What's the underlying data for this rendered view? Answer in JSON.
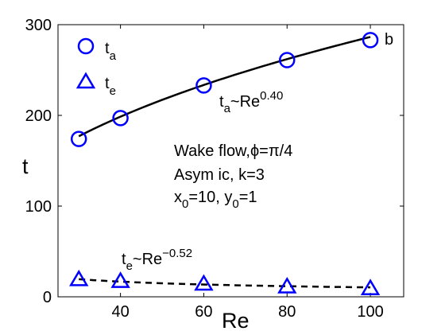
{
  "chart_data": {
    "type": "line",
    "xlabel": "Re",
    "ylabel": "t",
    "xlim": [
      25,
      108
    ],
    "ylim": [
      0,
      300
    ],
    "x_ticks": [
      40,
      60,
      80,
      100
    ],
    "y_ticks": [
      0,
      100,
      200,
      300
    ],
    "grid": false,
    "legend_position": "top-left",
    "panel_label": "b",
    "series": [
      {
        "name": "t_a",
        "legend": {
          "base": "t",
          "sub": "a"
        },
        "marker": "circle",
        "color": "#0000ff",
        "x": [
          30,
          40,
          60,
          80,
          100
        ],
        "y": [
          174,
          197,
          233,
          261,
          283
        ]
      },
      {
        "name": "t_e",
        "legend": {
          "base": "t",
          "sub": "e"
        },
        "marker": "triangle",
        "color": "#0000ff",
        "x": [
          30,
          40,
          60,
          80,
          100
        ],
        "y": [
          19,
          17,
          14,
          11,
          9
        ]
      }
    ],
    "fits": [
      {
        "style": "solid",
        "color": "#000000",
        "coef": 45.4,
        "exp": 0.4
      },
      {
        "style": "dashed",
        "color": "#000000",
        "coef": 114,
        "exp": -0.52
      }
    ],
    "annotations": {
      "fit_a": {
        "base": "t",
        "sub": "a",
        "mid": "~Re",
        "sup": "0.40"
      },
      "fit_e": {
        "base": "t",
        "sub": "e",
        "mid": "~Re",
        "sup": "−0.52"
      },
      "info_line1": "Wake flow,",
      "info_phi": "ϕ=π/4",
      "info_line2": "Asym ic, k=3",
      "info_x": "x",
      "info_x_sub": "0",
      "info_x_val": "=10, y",
      "info_y_sub": "0",
      "info_y_val": "=1"
    }
  }
}
